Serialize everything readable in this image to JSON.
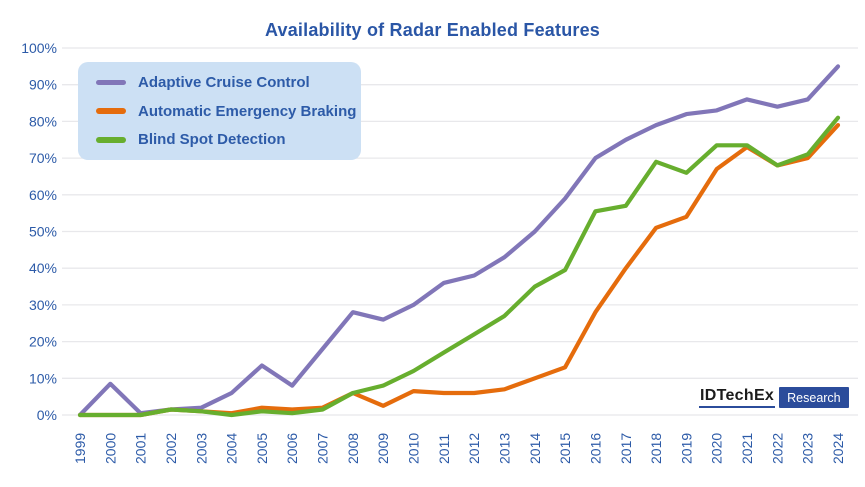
{
  "chart_data": {
    "type": "line",
    "title": "Availability of Radar Enabled Features",
    "xlabel": "",
    "ylabel": "",
    "x": [
      "1999",
      "2000",
      "2001",
      "2002",
      "2003",
      "2004",
      "2005",
      "2006",
      "2007",
      "2008",
      "2009",
      "2010",
      "2011",
      "2012",
      "2013",
      "2014",
      "2015",
      "2016",
      "2017",
      "2018",
      "2019",
      "2020",
      "2021",
      "2022",
      "2023",
      "2024"
    ],
    "series": [
      {
        "name": "Adaptive Cruise Control",
        "color": "#8176B8",
        "values": [
          0,
          8.5,
          0.5,
          1.5,
          2,
          6,
          13.5,
          8,
          18,
          28,
          26,
          30,
          36,
          38,
          43,
          50,
          59,
          70,
          75,
          79,
          82,
          83,
          86,
          84,
          86,
          95
        ]
      },
      {
        "name": "Automatic Emergency Braking",
        "color": "#E56C0C",
        "values": [
          0,
          0,
          0,
          1.5,
          1,
          0.5,
          2,
          1.5,
          2,
          6,
          2.5,
          6.5,
          6,
          6,
          7,
          10,
          13,
          28,
          40,
          51,
          54,
          67,
          73,
          68,
          70,
          79
        ]
      },
      {
        "name": "Blind Spot Detection",
        "color": "#67AE2E",
        "values": [
          0,
          0,
          0,
          1.5,
          1,
          0,
          1,
          0.5,
          1.5,
          6,
          8,
          12,
          17,
          22,
          27,
          35,
          39.5,
          55.5,
          57,
          69,
          66,
          73.5,
          73.5,
          68,
          71,
          81
        ]
      }
    ],
    "ylim": [
      0,
      100
    ],
    "yticks": [
      0,
      10,
      20,
      30,
      40,
      50,
      60,
      70,
      80,
      90,
      100
    ],
    "ytick_suffix": "%",
    "grid": "horizontal",
    "legend_position": "top-left"
  },
  "branding": {
    "wordmark": "IDTechEx",
    "research_label": "Research"
  },
  "colors": {
    "title_text": "#2A56A6",
    "tick_text": "#2D5BA8",
    "legend_bg": "#CCE0F4",
    "gridline": "#E8E8EB",
    "logo_blue": "#2B4C9B",
    "background": "#FFFFFF"
  }
}
